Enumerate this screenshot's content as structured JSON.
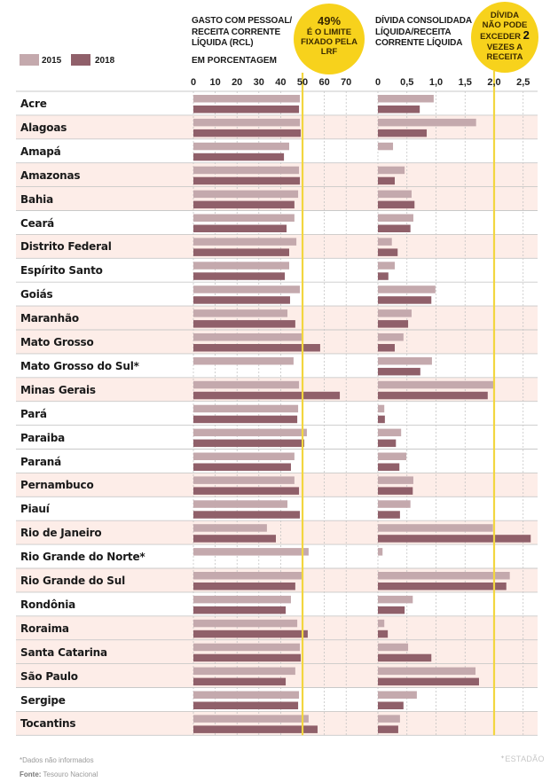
{
  "legend": {
    "items": [
      {
        "label": "2015",
        "color": "#c4a9ad"
      },
      {
        "label": "2018",
        "color": "#90606a"
      }
    ]
  },
  "left_header": {
    "title_lines": [
      "GASTO COM PESSOAL/",
      "RECEITA CORRENTE",
      "LÍQUIDA (RCL)"
    ],
    "unit": "EM PORCENTAGEM",
    "callout": {
      "big": "49%",
      "lines": [
        "É O LIMITE",
        "FIXADO PELA",
        "LRF"
      ]
    }
  },
  "right_header": {
    "title_lines": [
      "DÍVIDA CONSOLIDADA",
      "LÍQUIDA/RECEITA",
      "CORRENTE LÍQUIDA"
    ],
    "callout": {
      "line1": "DÍVIDA",
      "line2": "NÃO PODE",
      "line3a": "EXCEDER ",
      "line3b": "2",
      "line4": "VEZES A",
      "line5": "RECEITA"
    }
  },
  "footer": {
    "note": "*Dados não informados",
    "source_label": "Fonte:",
    "source_value": " Tesouro Nacional",
    "brand": "ESTADÃO"
  },
  "colors": {
    "y2015": "#c4a9ad",
    "y2018": "#90606a",
    "band": "#fdede8",
    "limit": "#f2d640",
    "grid": "#bdbdbd",
    "rowline": "#c9c9c9"
  },
  "chart_data": [
    {
      "type": "bar",
      "orientation": "horizontal",
      "title": "GASTO COM PESSOAL/ RECEITA CORRENTE LÍQUIDA (RCL)",
      "xlabel": "EM PORCENTAGEM",
      "xlim": [
        0,
        80
      ],
      "ticks": [
        0,
        10,
        20,
        30,
        40,
        50,
        60,
        70
      ],
      "tick_labels": [
        "0",
        "10",
        "20",
        "30",
        "40",
        "50",
        "60",
        "70"
      ],
      "reference_line": 49,
      "grid": true,
      "legend": "top-left",
      "categories": [
        "Acre",
        "Alagoas",
        "Amapá",
        "Amazonas",
        "Bahia",
        "Ceará",
        "Distrito Federal",
        "Espírito Santo",
        "Goiás",
        "Maranhão",
        "Mato Grosso",
        "Mato Grosso do Sul*",
        "Minas Gerais",
        "Pará",
        "Paraiba",
        "Paraná",
        "Pernambuco",
        "Piauí",
        "Rio de Janeiro",
        "Rio Grande do Norte*",
        "Rio Grande do Sul",
        "Rondônia",
        "Roraima",
        "Santa Catarina",
        "São Paulo",
        "Sergipe",
        "Tocantins"
      ],
      "series": [
        {
          "name": "2015",
          "values": [
            48.8,
            48.8,
            43.9,
            48.4,
            48.0,
            46.3,
            47.2,
            43.9,
            48.8,
            43.1,
            50.0,
            45.9,
            48.4,
            48.0,
            52.0,
            46.3,
            46.3,
            43.1,
            33.7,
            52.8,
            49.6,
            44.7,
            47.6,
            48.8,
            46.7,
            48.4,
            52.8
          ]
        },
        {
          "name": "2018",
          "values": [
            48.4,
            49.2,
            41.5,
            48.8,
            46.3,
            42.7,
            43.9,
            41.9,
            44.3,
            46.7,
            58.1,
            null,
            67.1,
            47.6,
            50.8,
            44.7,
            48.4,
            48.8,
            37.8,
            null,
            46.7,
            42.3,
            52.4,
            49.2,
            42.3,
            48.0,
            56.9
          ]
        }
      ]
    },
    {
      "type": "bar",
      "orientation": "horizontal",
      "title": "DÍVIDA CONSOLIDADA LÍQUIDA/RECEITA CORRENTE LÍQUIDA",
      "xlim": [
        0,
        2.8
      ],
      "ticks": [
        0,
        0.5,
        1.0,
        1.5,
        2.0,
        2.5
      ],
      "tick_labels": [
        "0",
        "0,5",
        "1,0",
        "1,5",
        "2,0",
        "2,5"
      ],
      "reference_line": 2.0,
      "grid": true,
      "categories": [
        "Acre",
        "Alagoas",
        "Amapá",
        "Amazonas",
        "Bahia",
        "Ceará",
        "Distrito Federal",
        "Espírito Santo",
        "Goiás",
        "Maranhão",
        "Mato Grosso",
        "Mato Grosso do Sul*",
        "Minas Gerais",
        "Pará",
        "Paraiba",
        "Paraná",
        "Pernambuco",
        "Piauí",
        "Rio de Janeiro",
        "Rio Grande do Norte*",
        "Rio Grande do Sul",
        "Rondônia",
        "Roraima",
        "Santa Catarina",
        "São Paulo",
        "Sergipe",
        "Tocantins"
      ],
      "series": [
        {
          "name": "2015",
          "values": [
            0.96,
            1.69,
            0.26,
            0.46,
            0.58,
            0.61,
            0.24,
            0.29,
            0.99,
            0.58,
            0.44,
            0.93,
            2.0,
            0.11,
            0.4,
            0.49,
            0.61,
            0.56,
            1.98,
            0.08,
            2.27,
            0.6,
            0.11,
            0.52,
            1.68,
            0.67,
            0.38
          ]
        },
        {
          "name": "2018",
          "values": [
            0.72,
            0.84,
            null,
            0.29,
            0.63,
            0.56,
            0.34,
            0.18,
            0.92,
            0.52,
            0.29,
            0.73,
            1.89,
            0.12,
            0.31,
            0.37,
            0.6,
            0.38,
            2.63,
            null,
            2.21,
            0.46,
            0.17,
            0.92,
            1.74,
            0.44,
            0.35
          ]
        }
      ]
    }
  ]
}
